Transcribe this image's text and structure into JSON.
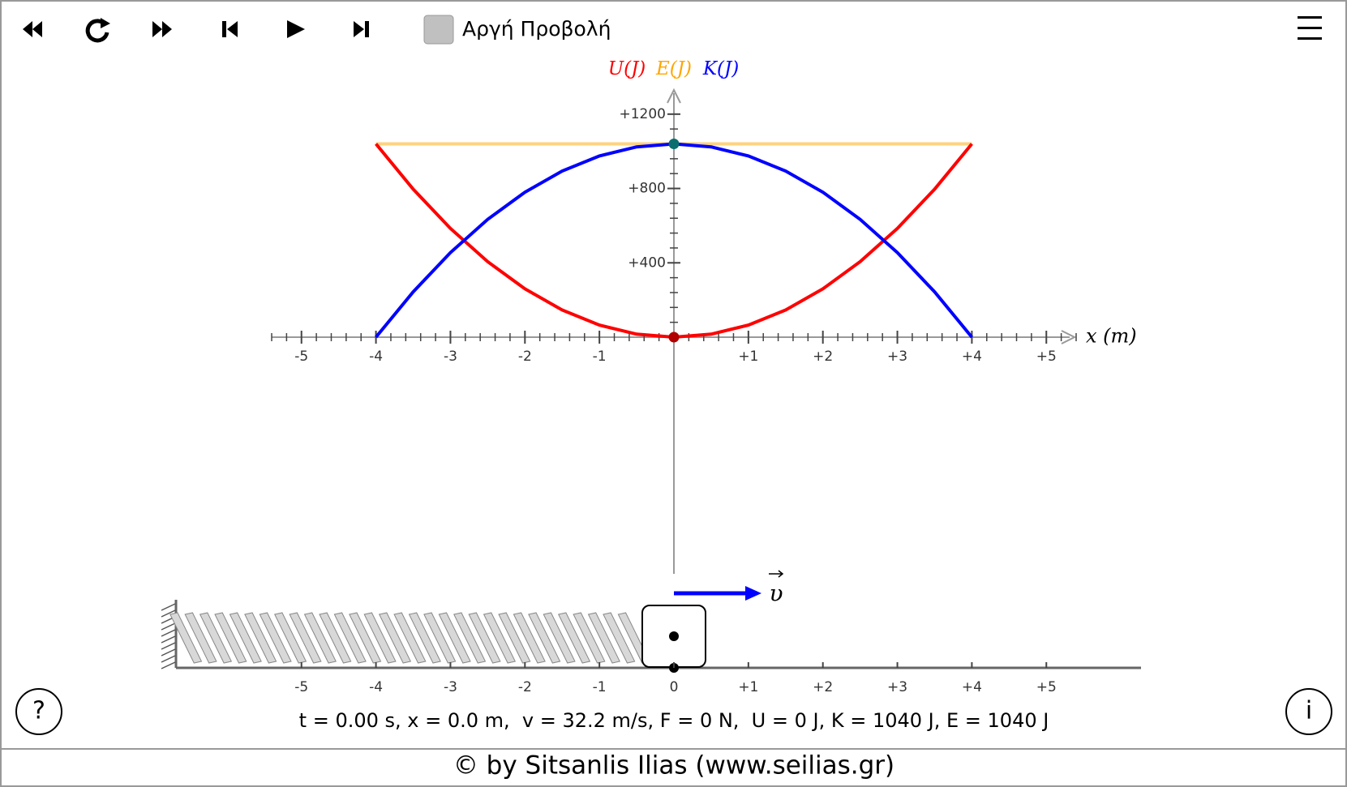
{
  "toolbar": {
    "checkbox_label": "Αργή Προβολή"
  },
  "chart_data": {
    "type": "line",
    "x": [
      -4,
      -3.5,
      -3,
      -2.5,
      -2,
      -1.5,
      -1,
      -0.5,
      0,
      0.5,
      1,
      1.5,
      2,
      2.5,
      3,
      3.5,
      4
    ],
    "series": [
      {
        "name": "E(J)",
        "color": "#ffa500",
        "values": [
          1040,
          1040,
          1040,
          1040,
          1040,
          1040,
          1040,
          1040,
          1040,
          1040,
          1040,
          1040,
          1040,
          1040,
          1040,
          1040,
          1040
        ]
      },
      {
        "name": "U(J)",
        "color": "#ff0000",
        "values": [
          1040,
          796.25,
          585,
          406.25,
          260,
          146.25,
          65,
          16.25,
          0,
          16.25,
          65,
          146.25,
          260,
          406.25,
          585,
          796.25,
          1040
        ]
      },
      {
        "name": "K(J)",
        "color": "#0000ff",
        "values": [
          0,
          243.75,
          455,
          633.75,
          780,
          893.75,
          975,
          1023.75,
          1040,
          1023.75,
          975,
          893.75,
          780,
          633.75,
          455,
          243.75,
          0
        ]
      }
    ],
    "xlabel": "x (m)",
    "xlim": [
      -5.4,
      5.4
    ],
    "xticks": [
      -5,
      -4,
      -3,
      -2,
      -1,
      {
        "value": 1,
        "label": "+1"
      },
      {
        "value": 2,
        "label": "+2"
      },
      {
        "value": 3,
        "label": "+3"
      },
      {
        "value": 4,
        "label": "+4"
      },
      {
        "value": 5,
        "label": "+5"
      }
    ],
    "ylim": [
      0,
      1330
    ],
    "yticks": [
      {
        "value": 400,
        "label": "+400"
      },
      {
        "value": 800,
        "label": "+800"
      },
      {
        "value": 1200,
        "label": "+1200"
      }
    ]
  },
  "ruler": {
    "ticks": [
      -5,
      -4,
      -3,
      -2,
      -1,
      0,
      {
        "value": 1,
        "label": "+1"
      },
      {
        "value": 2,
        "label": "+2"
      },
      {
        "value": 3,
        "label": "+3"
      },
      {
        "value": 4,
        "label": "+4"
      },
      {
        "value": 5,
        "label": "+5"
      }
    ]
  },
  "velocity_label": "υ",
  "status": "t = 0.00 s, x = 0.0 m,  v = 32.2 m/s, F = 0 N,  U = 0 J, K = 1040 J, E = 1040 J",
  "footer": "© by Sitsanlis Ilias (www.seilias.gr)",
  "help": "?",
  "info": "i"
}
